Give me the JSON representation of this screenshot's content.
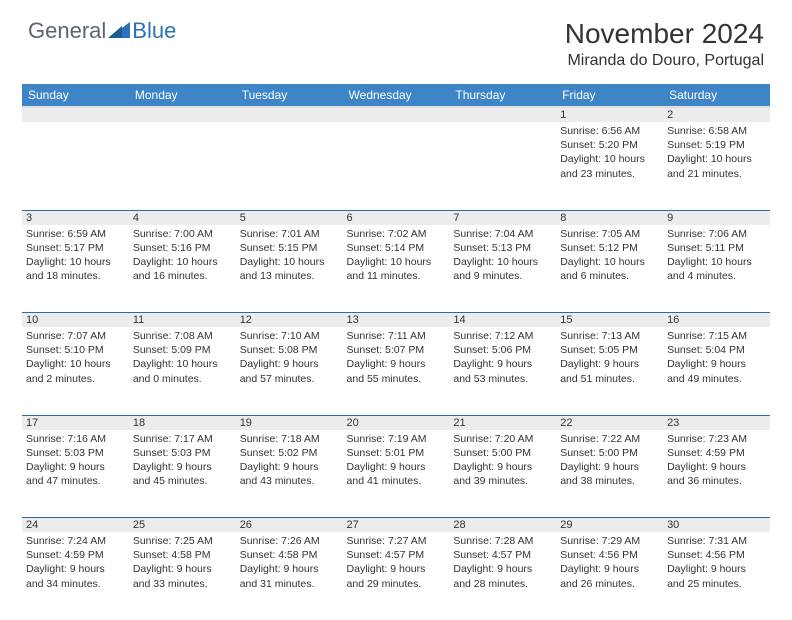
{
  "brand": {
    "part1": "General",
    "part2": "Blue"
  },
  "title": "November 2024",
  "location": "Miranda do Douro, Portugal",
  "colors": {
    "header_bg": "#3d85c6",
    "header_text": "#ffffff",
    "daynum_bg": "#ececec",
    "row_border": "#2b6aa8",
    "logo_gray": "#5a6570",
    "logo_blue": "#2b72b8",
    "text": "#333333"
  },
  "weekdays": [
    "Sunday",
    "Monday",
    "Tuesday",
    "Wednesday",
    "Thursday",
    "Friday",
    "Saturday"
  ],
  "weeks": [
    [
      {
        "n": "",
        "t": ""
      },
      {
        "n": "",
        "t": ""
      },
      {
        "n": "",
        "t": ""
      },
      {
        "n": "",
        "t": ""
      },
      {
        "n": "",
        "t": ""
      },
      {
        "n": "1",
        "t": "Sunrise: 6:56 AM\nSunset: 5:20 PM\nDaylight: 10 hours and 23 minutes."
      },
      {
        "n": "2",
        "t": "Sunrise: 6:58 AM\nSunset: 5:19 PM\nDaylight: 10 hours and 21 minutes."
      }
    ],
    [
      {
        "n": "3",
        "t": "Sunrise: 6:59 AM\nSunset: 5:17 PM\nDaylight: 10 hours and 18 minutes."
      },
      {
        "n": "4",
        "t": "Sunrise: 7:00 AM\nSunset: 5:16 PM\nDaylight: 10 hours and 16 minutes."
      },
      {
        "n": "5",
        "t": "Sunrise: 7:01 AM\nSunset: 5:15 PM\nDaylight: 10 hours and 13 minutes."
      },
      {
        "n": "6",
        "t": "Sunrise: 7:02 AM\nSunset: 5:14 PM\nDaylight: 10 hours and 11 minutes."
      },
      {
        "n": "7",
        "t": "Sunrise: 7:04 AM\nSunset: 5:13 PM\nDaylight: 10 hours and 9 minutes."
      },
      {
        "n": "8",
        "t": "Sunrise: 7:05 AM\nSunset: 5:12 PM\nDaylight: 10 hours and 6 minutes."
      },
      {
        "n": "9",
        "t": "Sunrise: 7:06 AM\nSunset: 5:11 PM\nDaylight: 10 hours and 4 minutes."
      }
    ],
    [
      {
        "n": "10",
        "t": "Sunrise: 7:07 AM\nSunset: 5:10 PM\nDaylight: 10 hours and 2 minutes."
      },
      {
        "n": "11",
        "t": "Sunrise: 7:08 AM\nSunset: 5:09 PM\nDaylight: 10 hours and 0 minutes."
      },
      {
        "n": "12",
        "t": "Sunrise: 7:10 AM\nSunset: 5:08 PM\nDaylight: 9 hours and 57 minutes."
      },
      {
        "n": "13",
        "t": "Sunrise: 7:11 AM\nSunset: 5:07 PM\nDaylight: 9 hours and 55 minutes."
      },
      {
        "n": "14",
        "t": "Sunrise: 7:12 AM\nSunset: 5:06 PM\nDaylight: 9 hours and 53 minutes."
      },
      {
        "n": "15",
        "t": "Sunrise: 7:13 AM\nSunset: 5:05 PM\nDaylight: 9 hours and 51 minutes."
      },
      {
        "n": "16",
        "t": "Sunrise: 7:15 AM\nSunset: 5:04 PM\nDaylight: 9 hours and 49 minutes."
      }
    ],
    [
      {
        "n": "17",
        "t": "Sunrise: 7:16 AM\nSunset: 5:03 PM\nDaylight: 9 hours and 47 minutes."
      },
      {
        "n": "18",
        "t": "Sunrise: 7:17 AM\nSunset: 5:03 PM\nDaylight: 9 hours and 45 minutes."
      },
      {
        "n": "19",
        "t": "Sunrise: 7:18 AM\nSunset: 5:02 PM\nDaylight: 9 hours and 43 minutes."
      },
      {
        "n": "20",
        "t": "Sunrise: 7:19 AM\nSunset: 5:01 PM\nDaylight: 9 hours and 41 minutes."
      },
      {
        "n": "21",
        "t": "Sunrise: 7:20 AM\nSunset: 5:00 PM\nDaylight: 9 hours and 39 minutes."
      },
      {
        "n": "22",
        "t": "Sunrise: 7:22 AM\nSunset: 5:00 PM\nDaylight: 9 hours and 38 minutes."
      },
      {
        "n": "23",
        "t": "Sunrise: 7:23 AM\nSunset: 4:59 PM\nDaylight: 9 hours and 36 minutes."
      }
    ],
    [
      {
        "n": "24",
        "t": "Sunrise: 7:24 AM\nSunset: 4:59 PM\nDaylight: 9 hours and 34 minutes."
      },
      {
        "n": "25",
        "t": "Sunrise: 7:25 AM\nSunset: 4:58 PM\nDaylight: 9 hours and 33 minutes."
      },
      {
        "n": "26",
        "t": "Sunrise: 7:26 AM\nSunset: 4:58 PM\nDaylight: 9 hours and 31 minutes."
      },
      {
        "n": "27",
        "t": "Sunrise: 7:27 AM\nSunset: 4:57 PM\nDaylight: 9 hours and 29 minutes."
      },
      {
        "n": "28",
        "t": "Sunrise: 7:28 AM\nSunset: 4:57 PM\nDaylight: 9 hours and 28 minutes."
      },
      {
        "n": "29",
        "t": "Sunrise: 7:29 AM\nSunset: 4:56 PM\nDaylight: 9 hours and 26 minutes."
      },
      {
        "n": "30",
        "t": "Sunrise: 7:31 AM\nSunset: 4:56 PM\nDaylight: 9 hours and 25 minutes."
      }
    ]
  ]
}
